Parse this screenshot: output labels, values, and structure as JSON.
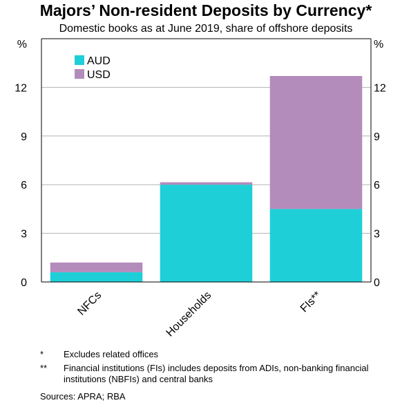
{
  "title": "Majors’ Non-resident Deposits by Currency*",
  "subtitle": "Domestic books as at June 2019, share of offshore deposits",
  "colors": {
    "aud": "#1fcfd8",
    "usd": "#b48cbc",
    "grid": "#b3b3b3",
    "axis": "#000000"
  },
  "chart_data": {
    "type": "bar",
    "stacked": true,
    "categories": [
      "NFCs",
      "Households",
      "FIs**"
    ],
    "series": [
      {
        "name": "AUD",
        "values": [
          0.6,
          6.0,
          4.5
        ]
      },
      {
        "name": "USD",
        "values": [
          0.6,
          0.15,
          8.2
        ]
      }
    ],
    "ylim": [
      0,
      15
    ],
    "yticks": [
      0,
      3,
      6,
      9,
      12
    ],
    "left_unit": "%",
    "right_unit": "%",
    "grid": true,
    "legend_position": "top-left"
  },
  "notes": [
    {
      "mark": "*",
      "text": "Excludes related offices"
    },
    {
      "mark": "**",
      "text": "Financial institutions (FIs) includes deposits from ADIs, non-banking financial institutions (NBFIs) and central banks"
    }
  ],
  "sources": "Sources:  APRA; RBA"
}
